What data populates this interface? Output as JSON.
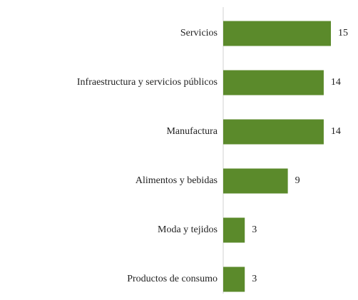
{
  "chart_data": {
    "type": "barh",
    "categories": [
      "Servicios",
      "Infraestructura y servicios públicos",
      "Manufactura",
      "Alimentos y bebidas",
      "Moda y tejidos",
      "Productos de consumo"
    ],
    "values": [
      15,
      14,
      14,
      9,
      3,
      3
    ],
    "color": "#5b8a2b"
  }
}
